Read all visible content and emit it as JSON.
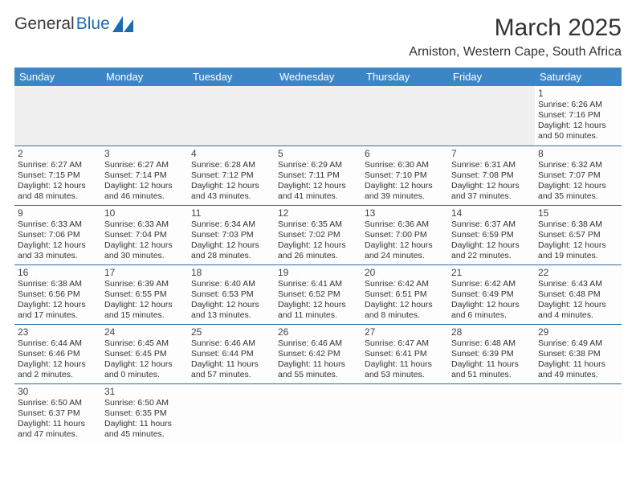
{
  "brand": {
    "part1": "General",
    "part2": "Blue"
  },
  "title": "March 2025",
  "location": "Arniston, Western Cape, South Africa",
  "colors": {
    "header_bg": "#3d86c6",
    "header_text": "#ffffff",
    "row_border": "#2f6ea8",
    "blank_bg": "#f0f0f0",
    "logo_accent": "#1f6bb0"
  },
  "day_headers": [
    "Sunday",
    "Monday",
    "Tuesday",
    "Wednesday",
    "Thursday",
    "Friday",
    "Saturday"
  ],
  "weeks": [
    [
      null,
      null,
      null,
      null,
      null,
      null,
      {
        "d": "1",
        "sr": "6:26 AM",
        "ss": "7:16 PM",
        "dl": "12 hours and 50 minutes."
      }
    ],
    [
      {
        "d": "2",
        "sr": "6:27 AM",
        "ss": "7:15 PM",
        "dl": "12 hours and 48 minutes."
      },
      {
        "d": "3",
        "sr": "6:27 AM",
        "ss": "7:14 PM",
        "dl": "12 hours and 46 minutes."
      },
      {
        "d": "4",
        "sr": "6:28 AM",
        "ss": "7:12 PM",
        "dl": "12 hours and 43 minutes."
      },
      {
        "d": "5",
        "sr": "6:29 AM",
        "ss": "7:11 PM",
        "dl": "12 hours and 41 minutes."
      },
      {
        "d": "6",
        "sr": "6:30 AM",
        "ss": "7:10 PM",
        "dl": "12 hours and 39 minutes."
      },
      {
        "d": "7",
        "sr": "6:31 AM",
        "ss": "7:08 PM",
        "dl": "12 hours and 37 minutes."
      },
      {
        "d": "8",
        "sr": "6:32 AM",
        "ss": "7:07 PM",
        "dl": "12 hours and 35 minutes."
      }
    ],
    [
      {
        "d": "9",
        "sr": "6:33 AM",
        "ss": "7:06 PM",
        "dl": "12 hours and 33 minutes."
      },
      {
        "d": "10",
        "sr": "6:33 AM",
        "ss": "7:04 PM",
        "dl": "12 hours and 30 minutes."
      },
      {
        "d": "11",
        "sr": "6:34 AM",
        "ss": "7:03 PM",
        "dl": "12 hours and 28 minutes."
      },
      {
        "d": "12",
        "sr": "6:35 AM",
        "ss": "7:02 PM",
        "dl": "12 hours and 26 minutes."
      },
      {
        "d": "13",
        "sr": "6:36 AM",
        "ss": "7:00 PM",
        "dl": "12 hours and 24 minutes."
      },
      {
        "d": "14",
        "sr": "6:37 AM",
        "ss": "6:59 PM",
        "dl": "12 hours and 22 minutes."
      },
      {
        "d": "15",
        "sr": "6:38 AM",
        "ss": "6:57 PM",
        "dl": "12 hours and 19 minutes."
      }
    ],
    [
      {
        "d": "16",
        "sr": "6:38 AM",
        "ss": "6:56 PM",
        "dl": "12 hours and 17 minutes."
      },
      {
        "d": "17",
        "sr": "6:39 AM",
        "ss": "6:55 PM",
        "dl": "12 hours and 15 minutes."
      },
      {
        "d": "18",
        "sr": "6:40 AM",
        "ss": "6:53 PM",
        "dl": "12 hours and 13 minutes."
      },
      {
        "d": "19",
        "sr": "6:41 AM",
        "ss": "6:52 PM",
        "dl": "12 hours and 11 minutes."
      },
      {
        "d": "20",
        "sr": "6:42 AM",
        "ss": "6:51 PM",
        "dl": "12 hours and 8 minutes."
      },
      {
        "d": "21",
        "sr": "6:42 AM",
        "ss": "6:49 PM",
        "dl": "12 hours and 6 minutes."
      },
      {
        "d": "22",
        "sr": "6:43 AM",
        "ss": "6:48 PM",
        "dl": "12 hours and 4 minutes."
      }
    ],
    [
      {
        "d": "23",
        "sr": "6:44 AM",
        "ss": "6:46 PM",
        "dl": "12 hours and 2 minutes."
      },
      {
        "d": "24",
        "sr": "6:45 AM",
        "ss": "6:45 PM",
        "dl": "12 hours and 0 minutes."
      },
      {
        "d": "25",
        "sr": "6:46 AM",
        "ss": "6:44 PM",
        "dl": "11 hours and 57 minutes."
      },
      {
        "d": "26",
        "sr": "6:46 AM",
        "ss": "6:42 PM",
        "dl": "11 hours and 55 minutes."
      },
      {
        "d": "27",
        "sr": "6:47 AM",
        "ss": "6:41 PM",
        "dl": "11 hours and 53 minutes."
      },
      {
        "d": "28",
        "sr": "6:48 AM",
        "ss": "6:39 PM",
        "dl": "11 hours and 51 minutes."
      },
      {
        "d": "29",
        "sr": "6:49 AM",
        "ss": "6:38 PM",
        "dl": "11 hours and 49 minutes."
      }
    ],
    [
      {
        "d": "30",
        "sr": "6:50 AM",
        "ss": "6:37 PM",
        "dl": "11 hours and 47 minutes."
      },
      {
        "d": "31",
        "sr": "6:50 AM",
        "ss": "6:35 PM",
        "dl": "11 hours and 45 minutes."
      },
      null,
      null,
      null,
      null,
      null
    ]
  ],
  "labels": {
    "sunrise": "Sunrise: ",
    "sunset": "Sunset: ",
    "daylight": "Daylight: "
  }
}
